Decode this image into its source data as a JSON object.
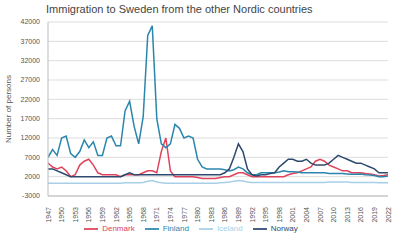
{
  "chart_data": {
    "type": "line",
    "title": "Immigration to Sweden from the other Nordic countries",
    "y_label": "Number of persons",
    "x": [
      1947,
      1948,
      1949,
      1950,
      1951,
      1952,
      1953,
      1954,
      1955,
      1956,
      1957,
      1958,
      1959,
      1960,
      1961,
      1962,
      1963,
      1964,
      1965,
      1966,
      1967,
      1968,
      1969,
      1970,
      1971,
      1972,
      1973,
      1974,
      1975,
      1976,
      1977,
      1978,
      1979,
      1980,
      1981,
      1982,
      1983,
      1984,
      1985,
      1986,
      1987,
      1988,
      1989,
      1990,
      1991,
      1992,
      1993,
      1994,
      1995,
      1996,
      1997,
      1998,
      1999,
      2000,
      2001,
      2002,
      2003,
      2004,
      2005,
      2006,
      2007,
      2008,
      2009,
      2010,
      2011,
      2012,
      2013,
      2014,
      2015,
      2016,
      2017,
      2018,
      2019,
      2020,
      2021,
      2022
    ],
    "series": [
      {
        "name": "Denmark",
        "color": "#e0435c",
        "values": [
          5500,
          4500,
          4000,
          4500,
          3500,
          2000,
          2500,
          5000,
          6000,
          6500,
          5000,
          3000,
          2500,
          2500,
          2500,
          2500,
          2000,
          2500,
          2500,
          2500,
          2500,
          3000,
          3500,
          3500,
          3000,
          8500,
          12000,
          3500,
          2000,
          2000,
          2000,
          2000,
          2000,
          1800,
          1500,
          1500,
          1500,
          1500,
          1800,
          2000,
          2000,
          2500,
          3000,
          3000,
          2500,
          2000,
          2000,
          2000,
          2000,
          2000,
          2000,
          2000,
          2000,
          2500,
          2800,
          3000,
          3500,
          4000,
          4500,
          6000,
          6500,
          6000,
          5000,
          4500,
          4000,
          3500,
          3500,
          3000,
          3000,
          3000,
          2800,
          2700,
          2500,
          2200,
          2300,
          2500
        ]
      },
      {
        "name": "Finland",
        "color": "#2b86ad",
        "values": [
          7000,
          9000,
          7500,
          12000,
          12500,
          8000,
          7000,
          8500,
          11500,
          9500,
          11000,
          7500,
          7500,
          12000,
          12500,
          10000,
          10000,
          19000,
          21500,
          15000,
          10500,
          17500,
          38500,
          41000,
          17000,
          10500,
          9500,
          10500,
          15500,
          14500,
          12000,
          12500,
          12000,
          6500,
          4500,
          4000,
          4000,
          4000,
          4000,
          3800,
          3500,
          3800,
          4500,
          4000,
          3000,
          2500,
          2500,
          3000,
          3000,
          3000,
          3000,
          3200,
          3500,
          3300,
          3300,
          3200,
          3000,
          3000,
          3000,
          3000,
          3000,
          3000,
          2800,
          2800,
          2800,
          2800,
          2700,
          2600,
          2600,
          2700,
          2500,
          2400,
          2300,
          2000,
          2000,
          2200
        ]
      },
      {
        "name": "Iceland",
        "color": "#a8cfe8",
        "values": [
          300,
          300,
          300,
          300,
          300,
          300,
          300,
          300,
          300,
          300,
          300,
          300,
          300,
          300,
          300,
          300,
          300,
          400,
          400,
          400,
          400,
          500,
          800,
          1000,
          600,
          400,
          300,
          300,
          300,
          300,
          300,
          300,
          300,
          300,
          300,
          300,
          300,
          300,
          400,
          500,
          600,
          800,
          1000,
          900,
          600,
          500,
          500,
          500,
          500,
          500,
          500,
          500,
          500,
          500,
          500,
          500,
          500,
          500,
          500,
          500,
          500,
          500,
          600,
          600,
          600,
          600,
          600,
          500,
          500,
          500,
          500,
          500,
          500,
          400,
          400,
          400
        ]
      },
      {
        "name": "Norway",
        "color": "#2d4a6e",
        "values": [
          4000,
          4000,
          3500,
          3000,
          2500,
          2000,
          2000,
          2000,
          2000,
          2000,
          2000,
          2000,
          2000,
          2000,
          2000,
          2000,
          2000,
          2500,
          3000,
          2500,
          2500,
          2500,
          2500,
          2500,
          2500,
          2500,
          2500,
          2500,
          2500,
          2500,
          2500,
          2500,
          2500,
          2500,
          2500,
          2500,
          2500,
          2500,
          2500,
          3000,
          4000,
          7000,
          10500,
          8500,
          4000,
          2500,
          2200,
          2500,
          2500,
          2800,
          3000,
          4500,
          5500,
          6500,
          6500,
          6000,
          6000,
          6500,
          5500,
          5000,
          5000,
          5000,
          5500,
          6500,
          7500,
          7000,
          6500,
          6000,
          5500,
          5500,
          5000,
          4500,
          4000,
          3000,
          3000,
          3000
        ]
      }
    ],
    "xlim": [
      1947,
      2022
    ],
    "xticks": [
      1947,
      1950,
      1953,
      1956,
      1959,
      1962,
      1965,
      1968,
      1971,
      1974,
      1977,
      1980,
      1983,
      1986,
      1989,
      1992,
      1995,
      1998,
      2001,
      2004,
      2007,
      2010,
      2013,
      2016,
      2019,
      2022
    ],
    "ylim": [
      -3000,
      42000
    ],
    "yticks": [
      -3000,
      2000,
      7000,
      12000,
      17000,
      22000,
      27000,
      32000,
      37000,
      42000
    ],
    "grid": true,
    "legend": "bottom"
  }
}
